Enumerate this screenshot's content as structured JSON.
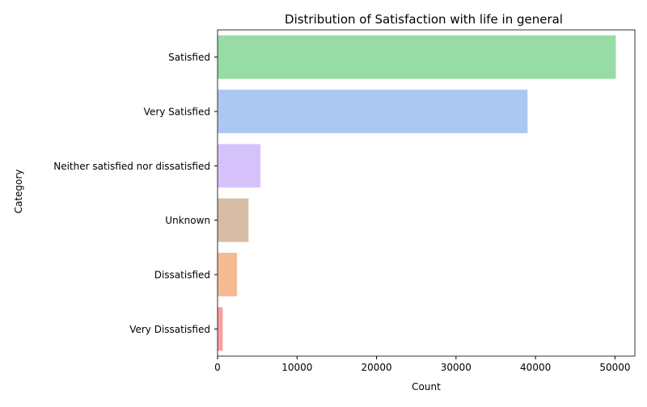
{
  "chart_data": {
    "type": "bar",
    "orientation": "horizontal",
    "title": "Distribution of Satisfaction with life in general",
    "xlabel": "Count",
    "ylabel": "Category",
    "categories": [
      "Satisfied",
      "Very Satisfied",
      "Neither satisfied nor dissatisfied",
      "Unknown",
      "Dissatisfied",
      "Very Dissatisfied"
    ],
    "values": [
      50100,
      39000,
      5400,
      3900,
      2450,
      650
    ],
    "colors": [
      "#97dba5",
      "#abc9f0",
      "#d6c2fb",
      "#d7bda6",
      "#f7bb94",
      "#fb9ea1"
    ],
    "xlim": [
      0,
      52500
    ],
    "xticks": [
      0,
      10000,
      20000,
      30000,
      40000,
      50000
    ],
    "xtick_labels": [
      "0",
      "10000",
      "20000",
      "30000",
      "40000",
      "50000"
    ],
    "grid": false,
    "legend": "none"
  }
}
